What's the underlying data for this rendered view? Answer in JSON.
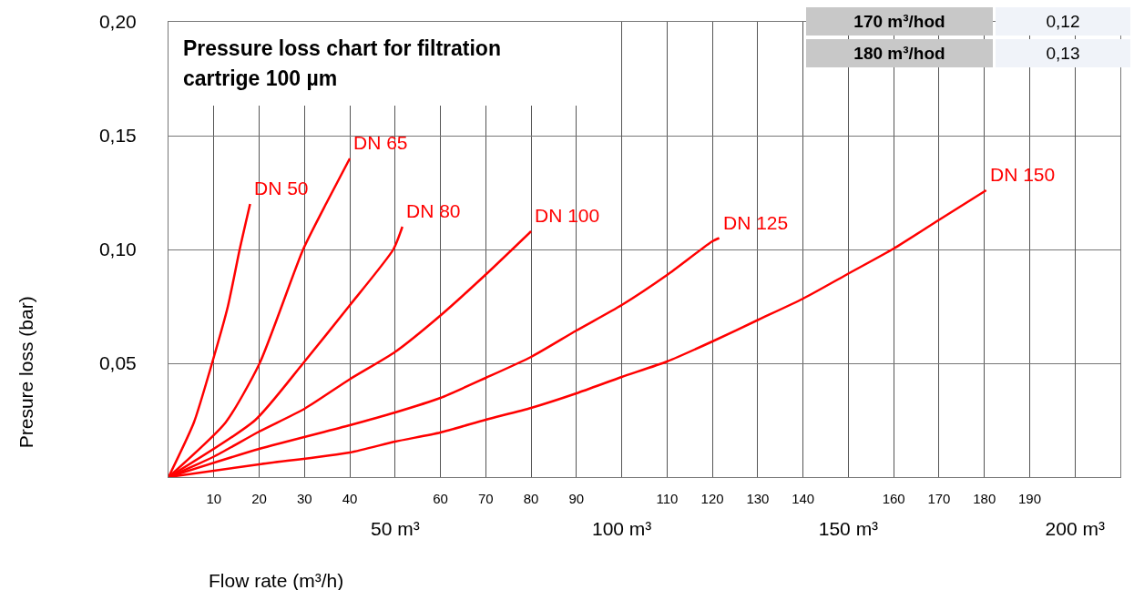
{
  "chart_data": {
    "type": "line",
    "title": "Pressure loss chart for filtration cartrige 100 µm",
    "xlabel": "Flow rate (m³/h)",
    "ylabel": "Presure loss (bar)",
    "xlim": [
      0,
      210
    ],
    "ylim": [
      0,
      0.2
    ],
    "xticks": [
      10,
      20,
      30,
      40,
      60,
      70,
      80,
      90,
      110,
      120,
      130,
      140,
      160,
      170,
      180,
      190
    ],
    "x2lim": [
      0,
      210
    ],
    "x2ticks": [
      {
        "value": 50,
        "label": "50 m³"
      },
      {
        "value": 100,
        "label": "100 m³"
      },
      {
        "value": 150,
        "label": "150 m³"
      },
      {
        "value": 200,
        "label": "200 m³"
      }
    ],
    "yticks": [
      {
        "value": 0.05,
        "label": "0,05"
      },
      {
        "value": 0.1,
        "label": "0,10"
      },
      {
        "value": 0.15,
        "label": "0,15"
      },
      {
        "value": 0.2,
        "label": "0,20"
      }
    ],
    "grid": true,
    "legend": false,
    "marker": "none",
    "line_style": "solid",
    "annotations": [
      "170 m³/hod",
      "0,12",
      "180 m³/hod",
      "0,13"
    ],
    "series": [
      {
        "name": "DN 50",
        "color": "#ff0000",
        "x": [
          0,
          5.6,
          9.6,
          13.1,
          15.7,
          18
        ],
        "values": [
          0,
          0.024,
          0.05,
          0.075,
          0.1,
          0.12
        ]
      },
      {
        "name": "DN 65",
        "color": "#ff0000",
        "x": [
          0,
          12.6,
          20.1,
          29.7,
          35,
          40
        ],
        "values": [
          0,
          0.024,
          0.05,
          0.1,
          0.121,
          0.14
        ]
      },
      {
        "name": "DN 80",
        "color": "#ff0000",
        "x": [
          0,
          19.1,
          29.7,
          39.8,
          49.6,
          51.6
        ],
        "values": [
          0,
          0.025,
          0.05,
          0.075,
          0.1,
          0.11
        ]
      },
      {
        "name": "DN 100",
        "color": "#ff0000",
        "x": [
          0,
          10,
          20,
          30,
          40,
          50,
          60,
          70,
          80
        ],
        "values": [
          0,
          0.009,
          0.02,
          0.03,
          0.043,
          0.055,
          0.071,
          0.089,
          0.108
        ]
      },
      {
        "name": "DN 125",
        "color": "#ff0000",
        "x": [
          0,
          20,
          40,
          50,
          60,
          70,
          80,
          90,
          100,
          110,
          120,
          121.5
        ],
        "values": [
          0,
          0.0124,
          0.0228,
          0.0284,
          0.0348,
          0.0436,
          0.0528,
          0.0644,
          0.0756,
          0.0888,
          0.1036,
          0.105
        ]
      },
      {
        "name": "DN 150",
        "color": "#ff0000",
        "x": [
          0,
          20,
          40,
          50,
          60,
          70,
          80,
          90,
          100,
          110,
          120,
          130,
          140,
          150,
          160,
          170,
          180.4
        ],
        "values": [
          0,
          0.0056,
          0.0108,
          0.0156,
          0.0196,
          0.0252,
          0.0304,
          0.0368,
          0.044,
          0.0508,
          0.0596,
          0.069,
          0.0784,
          0.0894,
          0.1004,
          0.113,
          0.126
        ]
      }
    ]
  }
}
